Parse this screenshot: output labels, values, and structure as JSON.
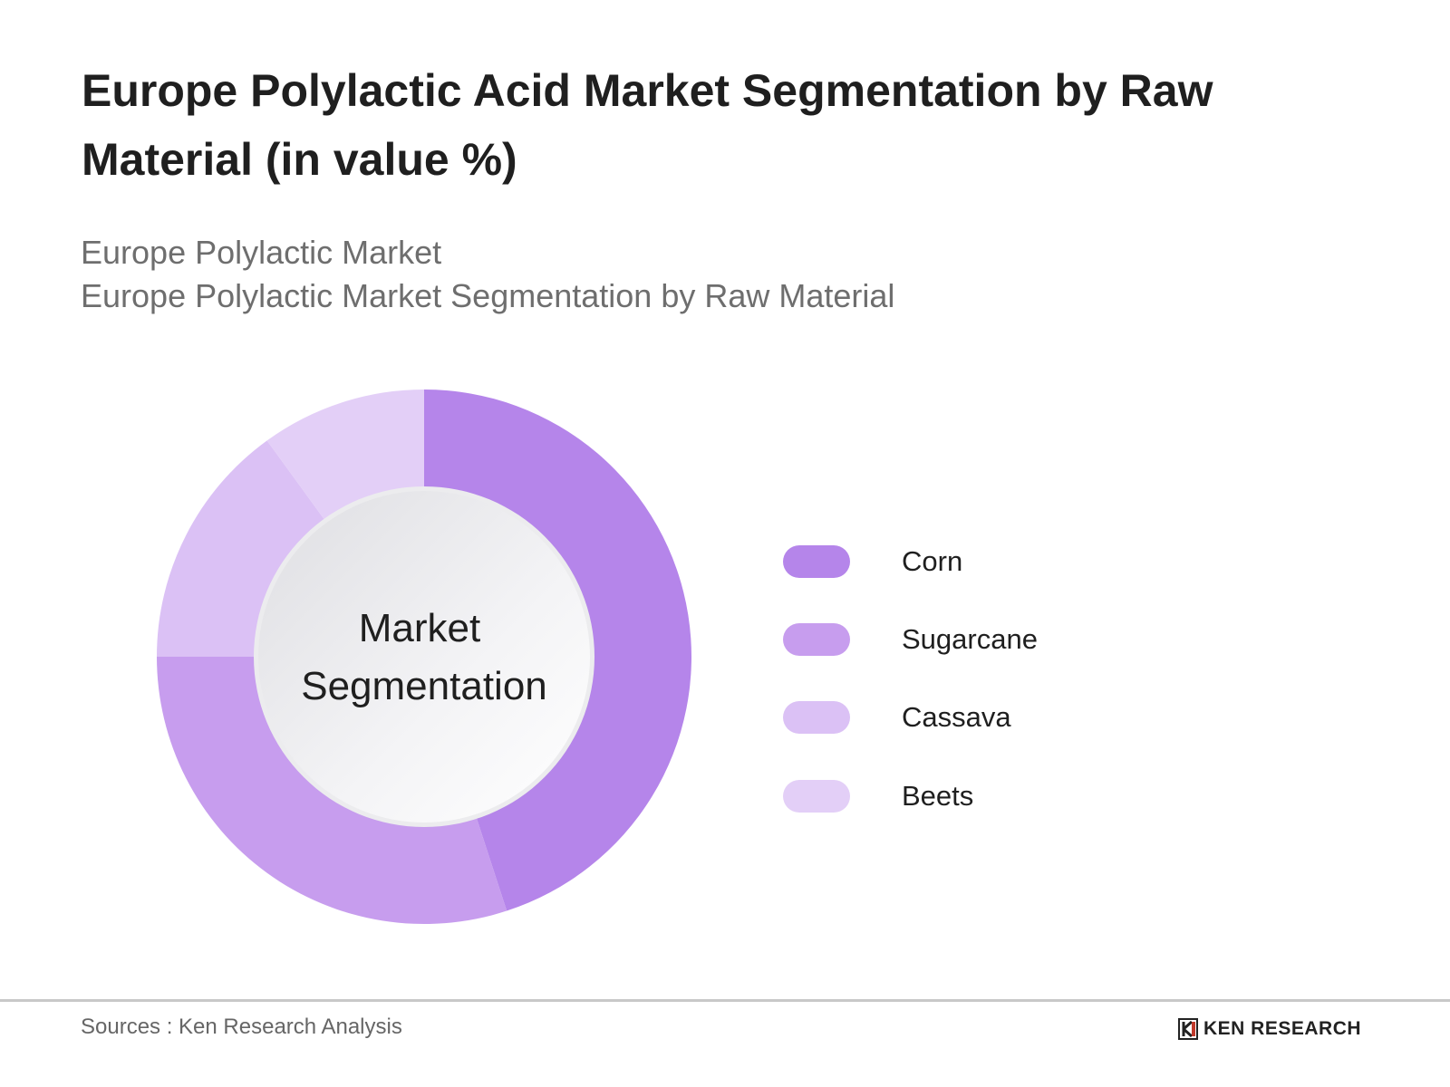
{
  "title": "Europe Polylactic Acid Market Segmentation by Raw Material (in value %)",
  "subtitle_1": "Europe Polylactic Market",
  "subtitle_2": "Europe Polylactic Market Segmentation by Raw Material",
  "footer": {
    "sources": "Sources : Ken Research Analysis",
    "logo_text": "KEN RESEARCH"
  },
  "chart_data": {
    "type": "pie",
    "variant": "donut",
    "center_label": [
      "Market",
      "Segmentation"
    ],
    "categories": [
      "Corn",
      "Sugarcane",
      "Cassava",
      "Beets"
    ],
    "values": [
      45,
      30,
      15,
      10
    ],
    "unit": "%",
    "colors": [
      "#b585ea",
      "#c79dee",
      "#dbc1f5",
      "#e3cff7"
    ],
    "legend_position": "right"
  }
}
